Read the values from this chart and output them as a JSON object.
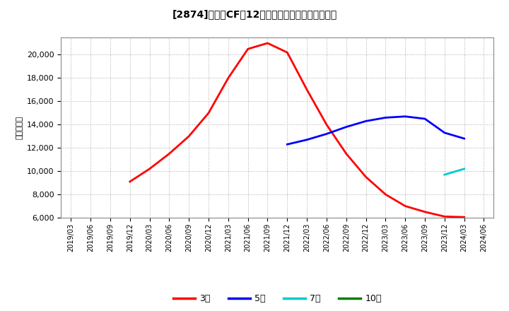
{
  "title": "[2874]　営業CFの12か月移動合計の平均値の推移",
  "ylabel": "（百万円）",
  "ylim": [
    6000,
    21500
  ],
  "yticks": [
    6000,
    8000,
    10000,
    12000,
    14000,
    16000,
    18000,
    20000
  ],
  "background_color": "#ffffff",
  "plot_bg_color": "#ffffff",
  "grid_color": "#aaaaaa",
  "series": {
    "3year": {
      "color": "#ff0000",
      "label": "3年",
      "x": [
        "2019/12",
        "2020/03",
        "2020/06",
        "2020/09",
        "2020/12",
        "2021/03",
        "2021/06",
        "2021/09",
        "2021/12",
        "2022/03",
        "2022/06",
        "2022/09",
        "2022/12",
        "2023/03",
        "2023/06",
        "2023/09",
        "2023/12",
        "2024/03"
      ],
      "y": [
        9100,
        10200,
        11500,
        13000,
        15000,
        18000,
        20500,
        21000,
        20200,
        17000,
        14000,
        11500,
        9500,
        8000,
        7000,
        6500,
        6100,
        6050
      ]
    },
    "5year": {
      "color": "#0000ff",
      "label": "5年",
      "x": [
        "2021/12",
        "2022/03",
        "2022/06",
        "2022/09",
        "2022/12",
        "2023/03",
        "2023/06",
        "2023/09",
        "2023/12",
        "2024/03"
      ],
      "y": [
        12300,
        12700,
        13200,
        13800,
        14300,
        14600,
        14700,
        14500,
        13300,
        12800
      ]
    },
    "7year": {
      "color": "#00cccc",
      "label": "7年",
      "x": [
        "2023/12",
        "2024/03"
      ],
      "y": [
        9700,
        10200
      ]
    },
    "10year": {
      "color": "#008000",
      "label": "10年",
      "x": [],
      "y": []
    }
  },
  "x_tick_labels": [
    "2019/03",
    "2019/06",
    "2019/09",
    "2019/12",
    "2020/03",
    "2020/06",
    "2020/09",
    "2020/12",
    "2021/03",
    "2021/06",
    "2021/09",
    "2021/12",
    "2022/03",
    "2022/06",
    "2022/09",
    "2022/12",
    "2023/03",
    "2023/06",
    "2023/09",
    "2023/12",
    "2024/03",
    "2024/06"
  ],
  "legend_labels": [
    "3年",
    "5年",
    "7年",
    "10年"
  ],
  "legend_colors": [
    "#ff0000",
    "#0000ff",
    "#00cccc",
    "#008000"
  ]
}
